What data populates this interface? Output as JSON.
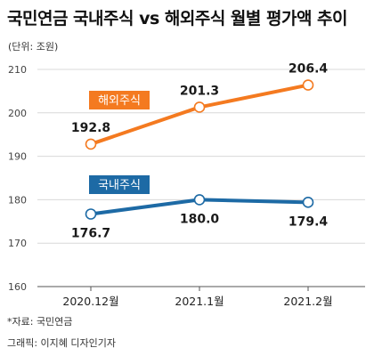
{
  "title": "국민연금 국내주식 vs 해외주식 월별 평가액 추이",
  "unit": "(단위: 조원)",
  "source": "*자료: 국민연금",
  "credit": "그래픽: 이지혜 디자인기자",
  "chart_data": {
    "type": "line",
    "categories": [
      "2020.12월",
      "2021.1월",
      "2021.2월"
    ],
    "y_ticks": [
      160,
      170,
      180,
      190,
      200,
      210
    ],
    "ylim": [
      160,
      210
    ],
    "grid": true,
    "series": [
      {
        "name": "해외주식",
        "color": "#f47a20",
        "values": [
          192.8,
          201.3,
          206.4
        ],
        "labels": [
          "192.8",
          "201.3",
          "206.4"
        ]
      },
      {
        "name": "국내주식",
        "color": "#1d6aa5",
        "values": [
          176.7,
          180.0,
          179.4
        ],
        "labels": [
          "176.7",
          "180.0",
          "179.4"
        ]
      }
    ]
  }
}
